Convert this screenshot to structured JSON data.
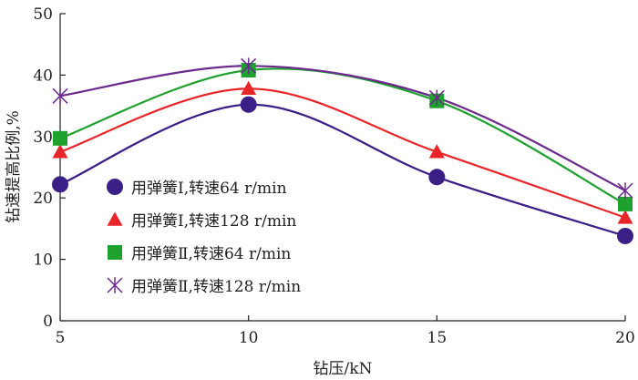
{
  "chart_data": {
    "type": "line",
    "xlabel": "钻压/kN",
    "ylabel": "钻速提高比例,%",
    "xlim": [
      5,
      20
    ],
    "ylim": [
      0,
      50
    ],
    "xticks": [
      "5",
      "10",
      "15",
      "20"
    ],
    "yticks": [
      "0",
      "10",
      "20",
      "30",
      "40",
      "50"
    ],
    "grid": false,
    "legend_position": "bottom-left",
    "series": [
      {
        "name": "用弹簧Ⅰ,转速64 r/min",
        "marker": "circle",
        "color": "#3a1f86",
        "x": [
          5,
          10,
          15,
          20
        ],
        "y": [
          22.2,
          35.2,
          23.4,
          13.8
        ]
      },
      {
        "name": "用弹簧Ⅰ,转速128 r/min",
        "marker": "triangle",
        "color": "#e8262a",
        "x": [
          5,
          10,
          15,
          20
        ],
        "y": [
          27.5,
          37.8,
          27.5,
          16.8
        ]
      },
      {
        "name": "用弹簧Ⅱ,转速64 r/min",
        "marker": "square",
        "color": "#1ea12e",
        "x": [
          5,
          10,
          15,
          20
        ],
        "y": [
          29.7,
          40.8,
          35.8,
          19.0
        ]
      },
      {
        "name": "用弹簧Ⅱ,转速128 r/min",
        "marker": "star",
        "color": "#6b2a8c",
        "x": [
          5,
          10,
          15,
          20
        ],
        "y": [
          36.6,
          41.5,
          36.3,
          21.2
        ]
      }
    ]
  }
}
